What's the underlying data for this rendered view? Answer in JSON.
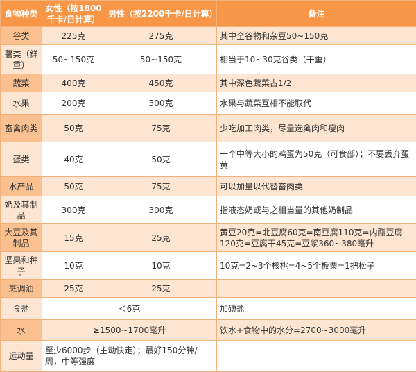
{
  "header": {
    "food": "食物种类",
    "female": "女性（按1800千卡/日计算）",
    "male": "男性（按2200千卡/日计算）",
    "note": "备注"
  },
  "rows": [
    {
      "cat": "谷类",
      "female": "225克",
      "male": "275克",
      "note": "其中全谷物和杂豆50~150克"
    },
    {
      "cat": "薯类（鲜重）",
      "female": "50~150克",
      "male": "50~150克",
      "note": "相当于10~30克谷类（干重）"
    },
    {
      "cat": "蔬菜",
      "female": "400克",
      "male": "450克",
      "note": "其中深色蔬菜占1/2"
    },
    {
      "cat": "水果",
      "female": "200克",
      "male": "300克",
      "note": "水果与蔬菜互相不能取代"
    },
    {
      "cat": "畜禽肉类",
      "female": "50克",
      "male": "75克",
      "note": "少吃加工肉类，尽量选禽肉和瘦肉"
    },
    {
      "cat": "蛋类",
      "female": "40克",
      "male": "50克",
      "note": "一个中等大小的鸡蛋为50克（可食部）；不要丢弃蛋黄"
    },
    {
      "cat": "水产品",
      "female": "50克",
      "male": "75克",
      "note": "可以加量以代替畜肉类"
    },
    {
      "cat": "奶及其制品",
      "female": "300克",
      "male": "300克",
      "note": "指液态奶或与之相当量的其他奶制品"
    },
    {
      "cat": "大豆及其制品",
      "female": "15克",
      "male": "25克",
      "note": "黄豆20克=北豆腐60克=南豆腐110克=内酯豆腐120克=豆腐干45克=豆浆360~380毫升"
    },
    {
      "cat": "坚果和种子",
      "female": "10克",
      "male": "10克",
      "note": "10克=2~3个核桃=4~5个板栗=1把松子"
    },
    {
      "cat": "烹调油",
      "female": "25克",
      "male": "25克",
      "note": ""
    }
  ],
  "salt": {
    "cat": "食盐",
    "value": "＜6克",
    "note": "加碘盐"
  },
  "water": {
    "cat": "水",
    "value": "≥1500~1700毫升",
    "note": "饮水+食物中的水分=2700~3000毫升"
  },
  "exercise": {
    "cat": "运动量",
    "value": "至少6000步（主动快走）；最好150分钟/周，中等强度",
    "note": ""
  }
}
